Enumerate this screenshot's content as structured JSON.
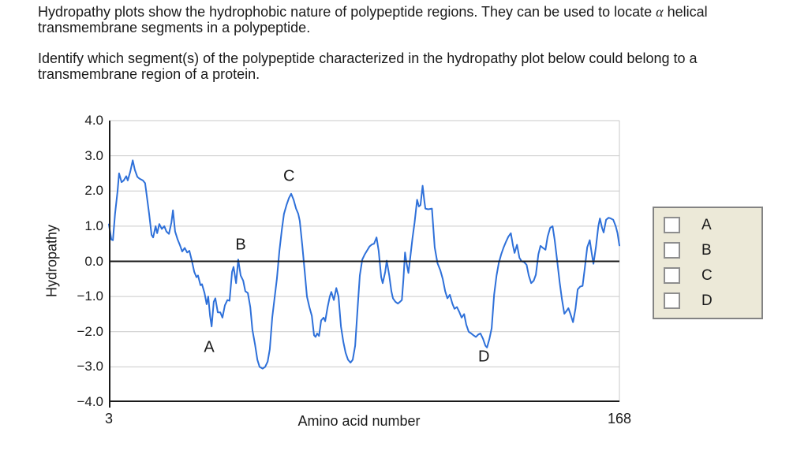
{
  "question": {
    "p1_before_alpha": "Hydropathy plots show the hydrophobic nature of polypeptide regions. They can be used to locate ",
    "p1_alpha": "α",
    "p1_after_alpha": " helical\ntransmembrane segments in a polypeptide.",
    "p2": "Identify which segment(s) of the polypeptide characterized in the hydropathy plot below could belong to a\ntransmembrane region of a protein."
  },
  "chart_data": {
    "type": "line",
    "title": "",
    "xlabel": "Amino acid number",
    "ylabel": "Hydropathy",
    "xlim": [
      3,
      168
    ],
    "ylim": [
      -4,
      4
    ],
    "grid": "horizontal",
    "legend": "none",
    "line_color": "#2e70d9",
    "grid_color": "#c9c9c9",
    "axis_color": "#1a1a1a",
    "xticks": [
      {
        "value": 3,
        "label": "3"
      },
      {
        "value": 168,
        "label": "168"
      }
    ],
    "yticks": [
      {
        "value": 4,
        "label": "4.0"
      },
      {
        "value": 3,
        "label": "3.0"
      },
      {
        "value": 2,
        "label": "2.0"
      },
      {
        "value": 1,
        "label": "1.0"
      },
      {
        "value": 0,
        "label": "0.0"
      },
      {
        "value": -1,
        "label": "−1.0"
      },
      {
        "value": -2,
        "label": "−2.0"
      },
      {
        "value": -3,
        "label": "−3.0"
      },
      {
        "value": -4,
        "label": "−4.0"
      }
    ],
    "annotations": [
      {
        "label": "A",
        "x": 35.4,
        "y": -2.45
      },
      {
        "label": "B",
        "x": 45.6,
        "y": 0.45
      },
      {
        "label": "C",
        "x": 61.2,
        "y": 2.42
      },
      {
        "label": "D",
        "x": 124.2,
        "y": -2.72
      }
    ],
    "series": [
      {
        "name": "hydropathy",
        "points": [
          [
            3.0,
            1.05
          ],
          [
            3.8,
            0.62
          ],
          [
            4.3,
            0.6
          ],
          [
            5.0,
            1.35
          ],
          [
            5.8,
            2.0
          ],
          [
            6.3,
            2.5
          ],
          [
            7.1,
            2.25
          ],
          [
            7.8,
            2.3
          ],
          [
            8.6,
            2.42
          ],
          [
            9.1,
            2.3
          ],
          [
            9.9,
            2.55
          ],
          [
            10.7,
            2.87
          ],
          [
            11.4,
            2.6
          ],
          [
            12.2,
            2.4
          ],
          [
            12.9,
            2.35
          ],
          [
            14.0,
            2.3
          ],
          [
            14.7,
            2.22
          ],
          [
            15.2,
            1.9
          ],
          [
            16.0,
            1.35
          ],
          [
            16.8,
            0.75
          ],
          [
            17.3,
            0.68
          ],
          [
            18.1,
            1.0
          ],
          [
            18.6,
            0.8
          ],
          [
            19.3,
            1.06
          ],
          [
            20.1,
            0.92
          ],
          [
            20.9,
            1.0
          ],
          [
            21.6,
            0.85
          ],
          [
            22.4,
            0.78
          ],
          [
            23.2,
            1.1
          ],
          [
            23.7,
            1.45
          ],
          [
            24.4,
            0.85
          ],
          [
            25.2,
            0.62
          ],
          [
            26.0,
            0.45
          ],
          [
            26.7,
            0.28
          ],
          [
            27.5,
            0.38
          ],
          [
            28.3,
            0.25
          ],
          [
            29.0,
            0.3
          ],
          [
            29.8,
            0.02
          ],
          [
            30.6,
            -0.3
          ],
          [
            31.3,
            -0.45
          ],
          [
            31.8,
            -0.4
          ],
          [
            32.6,
            -0.68
          ],
          [
            33.1,
            -0.65
          ],
          [
            33.9,
            -0.9
          ],
          [
            34.6,
            -1.22
          ],
          [
            35.1,
            -1.0
          ],
          [
            35.7,
            -1.55
          ],
          [
            36.2,
            -1.85
          ],
          [
            36.9,
            -1.15
          ],
          [
            37.4,
            -1.05
          ],
          [
            38.2,
            -1.45
          ],
          [
            39.0,
            -1.45
          ],
          [
            39.7,
            -1.6
          ],
          [
            40.5,
            -1.25
          ],
          [
            41.3,
            -1.1
          ],
          [
            42.0,
            -1.12
          ],
          [
            42.8,
            -0.3
          ],
          [
            43.3,
            -0.16
          ],
          [
            44.1,
            -0.62
          ],
          [
            44.8,
            0.05
          ],
          [
            45.6,
            -0.4
          ],
          [
            46.4,
            -0.55
          ],
          [
            47.1,
            -0.85
          ],
          [
            47.9,
            -0.9
          ],
          [
            48.7,
            -1.3
          ],
          [
            49.4,
            -1.95
          ],
          [
            50.2,
            -2.35
          ],
          [
            51.0,
            -2.8
          ],
          [
            51.7,
            -3.0
          ],
          [
            52.7,
            -3.05
          ],
          [
            53.5,
            -3.0
          ],
          [
            54.3,
            -2.85
          ],
          [
            55.0,
            -2.5
          ],
          [
            55.8,
            -1.6
          ],
          [
            56.6,
            -1.0
          ],
          [
            57.3,
            -0.5
          ],
          [
            58.1,
            0.3
          ],
          [
            58.9,
            0.9
          ],
          [
            59.6,
            1.35
          ],
          [
            60.4,
            1.6
          ],
          [
            61.2,
            1.8
          ],
          [
            61.9,
            1.92
          ],
          [
            62.7,
            1.75
          ],
          [
            63.5,
            1.5
          ],
          [
            64.2,
            1.35
          ],
          [
            64.7,
            1.15
          ],
          [
            65.5,
            0.45
          ],
          [
            66.3,
            -0.3
          ],
          [
            67.0,
            -1.0
          ],
          [
            67.8,
            -1.3
          ],
          [
            68.6,
            -1.55
          ],
          [
            69.3,
            -2.1
          ],
          [
            69.8,
            -2.15
          ],
          [
            70.3,
            -2.05
          ],
          [
            70.9,
            -2.12
          ],
          [
            71.6,
            -1.68
          ],
          [
            72.4,
            -1.6
          ],
          [
            72.9,
            -1.7
          ],
          [
            73.7,
            -1.3
          ],
          [
            74.4,
            -1.0
          ],
          [
            74.9,
            -0.87
          ],
          [
            75.7,
            -1.1
          ],
          [
            76.5,
            -0.76
          ],
          [
            77.2,
            -1.0
          ],
          [
            78.0,
            -1.85
          ],
          [
            78.8,
            -2.3
          ],
          [
            79.5,
            -2.6
          ],
          [
            80.3,
            -2.8
          ],
          [
            81.1,
            -2.88
          ],
          [
            81.8,
            -2.8
          ],
          [
            82.6,
            -2.4
          ],
          [
            83.4,
            -1.3
          ],
          [
            84.1,
            -0.4
          ],
          [
            84.9,
            0.05
          ],
          [
            85.7,
            0.2
          ],
          [
            86.4,
            0.3
          ],
          [
            87.2,
            0.42
          ],
          [
            88.0,
            0.48
          ],
          [
            88.7,
            0.5
          ],
          [
            89.5,
            0.68
          ],
          [
            90.2,
            0.3
          ],
          [
            91.0,
            -0.45
          ],
          [
            91.5,
            -0.62
          ],
          [
            92.3,
            -0.3
          ],
          [
            92.8,
            0.02
          ],
          [
            93.6,
            -0.4
          ],
          [
            94.3,
            -0.85
          ],
          [
            94.8,
            -1.05
          ],
          [
            95.6,
            -1.15
          ],
          [
            96.4,
            -1.2
          ],
          [
            97.1,
            -1.15
          ],
          [
            97.7,
            -1.1
          ],
          [
            98.2,
            -0.5
          ],
          [
            98.7,
            0.25
          ],
          [
            99.2,
            -0.05
          ],
          [
            99.8,
            -0.33
          ],
          [
            100.4,
            0.1
          ],
          [
            101.1,
            0.65
          ],
          [
            101.8,
            1.1
          ],
          [
            102.6,
            1.75
          ],
          [
            103.2,
            1.56
          ],
          [
            103.7,
            1.6
          ],
          [
            104.4,
            2.15
          ],
          [
            104.9,
            1.75
          ],
          [
            105.3,
            1.5
          ],
          [
            106.2,
            1.48
          ],
          [
            107.4,
            1.5
          ],
          [
            108.3,
            0.4
          ],
          [
            109.2,
            -0.05
          ],
          [
            110.1,
            -0.25
          ],
          [
            110.9,
            -0.5
          ],
          [
            111.7,
            -0.85
          ],
          [
            112.4,
            -1.05
          ],
          [
            113.2,
            -0.95
          ],
          [
            114.0,
            -1.2
          ],
          [
            114.7,
            -1.35
          ],
          [
            115.5,
            -1.3
          ],
          [
            116.3,
            -1.45
          ],
          [
            117.0,
            -1.6
          ],
          [
            117.8,
            -1.5
          ],
          [
            118.5,
            -1.8
          ],
          [
            119.3,
            -2.0
          ],
          [
            120.1,
            -2.05
          ],
          [
            120.8,
            -2.1
          ],
          [
            121.6,
            -2.15
          ],
          [
            122.4,
            -2.08
          ],
          [
            123.1,
            -2.05
          ],
          [
            123.9,
            -2.2
          ],
          [
            124.7,
            -2.4
          ],
          [
            125.2,
            -2.45
          ],
          [
            126.0,
            -2.2
          ],
          [
            126.7,
            -1.9
          ],
          [
            127.5,
            -0.95
          ],
          [
            128.3,
            -0.4
          ],
          [
            129.0,
            -0.05
          ],
          [
            129.8,
            0.2
          ],
          [
            130.6,
            0.4
          ],
          [
            131.3,
            0.55
          ],
          [
            132.1,
            0.7
          ],
          [
            132.9,
            0.8
          ],
          [
            133.6,
            0.45
          ],
          [
            134.1,
            0.24
          ],
          [
            134.9,
            0.47
          ],
          [
            135.7,
            0.1
          ],
          [
            136.4,
            0.0
          ],
          [
            137.2,
            -0.02
          ],
          [
            138.0,
            -0.1
          ],
          [
            138.7,
            -0.4
          ],
          [
            139.5,
            -0.62
          ],
          [
            140.3,
            -0.55
          ],
          [
            141.0,
            -0.38
          ],
          [
            141.8,
            0.2
          ],
          [
            142.5,
            0.44
          ],
          [
            143.3,
            0.38
          ],
          [
            144.1,
            0.33
          ],
          [
            144.8,
            0.7
          ],
          [
            145.6,
            0.95
          ],
          [
            146.4,
            1.0
          ],
          [
            147.1,
            0.6
          ],
          [
            147.9,
            0.0
          ],
          [
            148.7,
            -0.6
          ],
          [
            149.4,
            -1.07
          ],
          [
            150.2,
            -1.49
          ],
          [
            151.0,
            -1.4
          ],
          [
            151.5,
            -1.33
          ],
          [
            152.2,
            -1.5
          ],
          [
            153.0,
            -1.73
          ],
          [
            153.8,
            -1.35
          ],
          [
            154.5,
            -0.8
          ],
          [
            155.3,
            -0.72
          ],
          [
            156.1,
            -0.7
          ],
          [
            156.8,
            -0.2
          ],
          [
            157.6,
            0.4
          ],
          [
            158.4,
            0.6
          ],
          [
            159.1,
            0.2
          ],
          [
            159.6,
            -0.07
          ],
          [
            160.4,
            0.4
          ],
          [
            161.2,
            1.0
          ],
          [
            161.7,
            1.22
          ],
          [
            162.4,
            0.95
          ],
          [
            162.9,
            0.82
          ],
          [
            163.7,
            1.18
          ],
          [
            164.5,
            1.24
          ],
          [
            165.2,
            1.22
          ],
          [
            166.0,
            1.18
          ],
          [
            166.8,
            1.0
          ],
          [
            167.4,
            0.8
          ],
          [
            168.0,
            0.45
          ]
        ]
      }
    ]
  },
  "answer_panel": {
    "background": "#ece9d8",
    "border_color": "#838383",
    "options": [
      {
        "label": "A",
        "checked": false
      },
      {
        "label": "B",
        "checked": false
      },
      {
        "label": "C",
        "checked": false
      },
      {
        "label": "D",
        "checked": false
      }
    ]
  }
}
